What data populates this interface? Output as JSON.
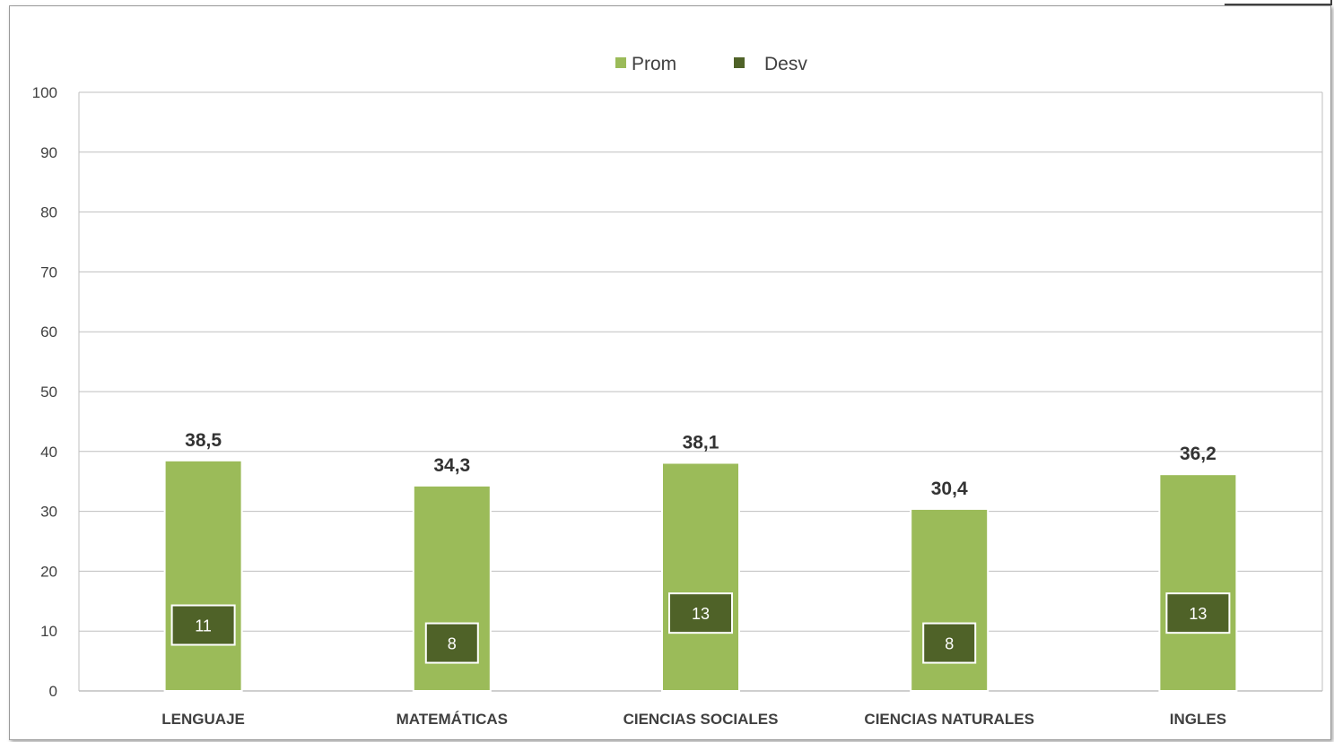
{
  "chart_data": {
    "type": "bar",
    "categories": [
      "LENGUAJE",
      "MATEMÁTICAS",
      "CIENCIAS SOCIALES",
      "CIENCIAS NATURALES",
      "INGLES"
    ],
    "series": [
      {
        "name": "Prom",
        "values": [
          38.5,
          34.3,
          38.1,
          30.4,
          36.2
        ],
        "color": "#9BBB59",
        "labels": [
          "38,5",
          "34,3",
          "38,1",
          "30,4",
          "36,2"
        ]
      },
      {
        "name": "Desv",
        "values": [
          11,
          8,
          13,
          8,
          13
        ],
        "color": "#4F6228",
        "labels": [
          "11",
          "8",
          "13",
          "8",
          "13"
        ]
      }
    ],
    "ylim": [
      0,
      100
    ],
    "yticks": [
      "0",
      "10",
      "20",
      "30",
      "40",
      "50",
      "60",
      "70",
      "80",
      "90",
      "100"
    ],
    "grid": true,
    "legend": "top-center"
  }
}
